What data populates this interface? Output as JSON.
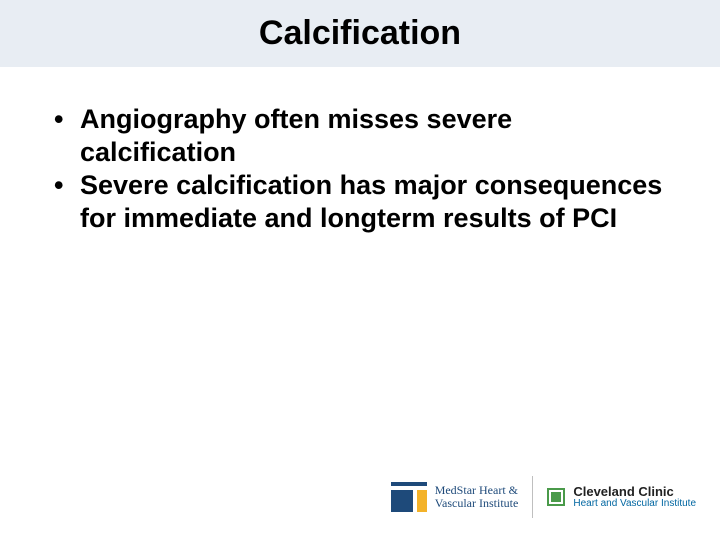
{
  "title": "Calcification",
  "bullets": [
    "Angiography often misses severe calcification",
    "Severe calcification has major consequences for immediate and longterm results of PCI"
  ],
  "logos": {
    "medstar": {
      "line1": "MedStar Heart &",
      "line2": "Vascular Institute",
      "brand_color": "#1e4a7a",
      "accent_color": "#f3b229"
    },
    "cleveland": {
      "line1": "Cleveland Clinic",
      "line2": "Heart and Vascular Institute",
      "mark_color": "#4a9a4a",
      "subtitle_color": "#0066a1"
    }
  },
  "styles": {
    "title_bg": "#e8edf3",
    "title_fontsize": 34,
    "bullet_fontsize": 27,
    "page_bg": "#ffffff"
  }
}
